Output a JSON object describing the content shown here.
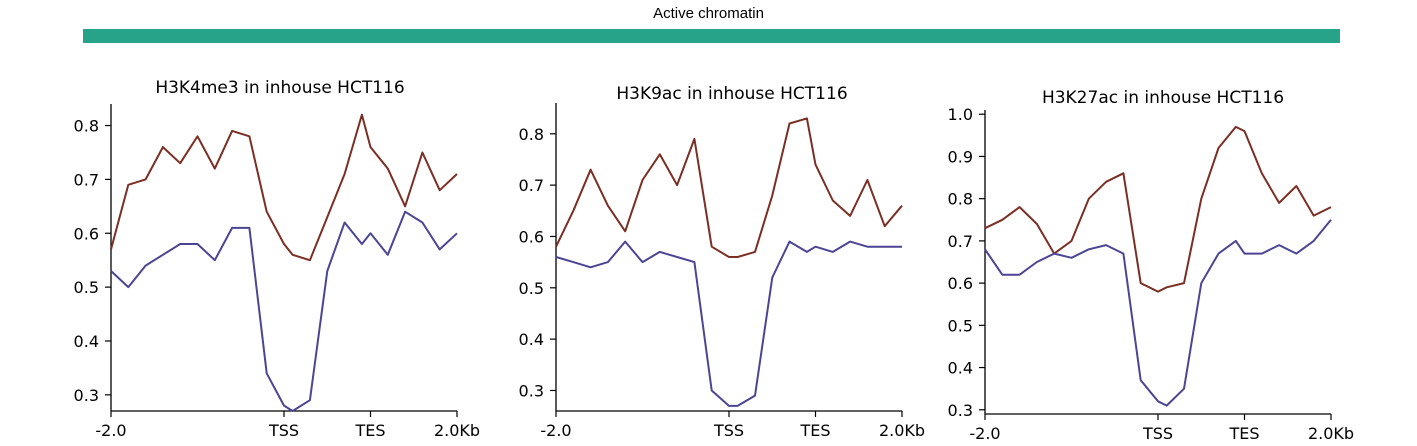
{
  "header": {
    "title": "Active chromatin",
    "bar_color": "#27a38a"
  },
  "colors": {
    "red_series": "#7b2f24",
    "blue_series": "#4b4594"
  },
  "chart_data": [
    {
      "type": "line",
      "title": "H3K4me3 in inhouse HCT116",
      "x": [
        -2.0,
        -1.8,
        -1.6,
        -1.4,
        -1.2,
        -1.0,
        -0.8,
        -0.6,
        -0.4,
        -0.2,
        0.0,
        0.1,
        0.3,
        0.5,
        0.7,
        0.9,
        1.0,
        1.2,
        1.4,
        1.6,
        1.8,
        2.0
      ],
      "xticks": [
        {
          "value": -2.0,
          "label": "-2.0"
        },
        {
          "value": 0.0,
          "label": "TSS"
        },
        {
          "value": 1.0,
          "label": "TES"
        },
        {
          "value": 2.0,
          "label": "2.0Kb"
        }
      ],
      "ylim": [
        0.27,
        0.84
      ],
      "yticks": [
        0.3,
        0.4,
        0.5,
        0.6,
        0.7,
        0.8
      ],
      "series": [
        {
          "values": [
            0.57,
            0.69,
            0.7,
            0.76,
            0.73,
            0.78,
            0.72,
            0.79,
            0.78,
            0.64,
            0.58,
            0.56,
            0.55,
            0.63,
            0.71,
            0.82,
            0.76,
            0.72,
            0.65,
            0.75,
            0.68,
            0.71
          ]
        },
        {
          "values": [
            0.53,
            0.5,
            0.54,
            0.56,
            0.58,
            0.58,
            0.55,
            0.61,
            0.61,
            0.34,
            0.28,
            0.27,
            0.29,
            0.53,
            0.62,
            0.58,
            0.6,
            0.56,
            0.64,
            0.62,
            0.57,
            0.6
          ]
        }
      ]
    },
    {
      "type": "line",
      "title": "H3K9ac in inhouse HCT116",
      "x": [
        -2.0,
        -1.8,
        -1.6,
        -1.4,
        -1.2,
        -1.0,
        -0.8,
        -0.6,
        -0.4,
        -0.2,
        0.0,
        0.1,
        0.3,
        0.5,
        0.7,
        0.9,
        1.0,
        1.2,
        1.4,
        1.6,
        1.8,
        2.0
      ],
      "xticks": [
        {
          "value": -2.0,
          "label": "-2.0"
        },
        {
          "value": 0.0,
          "label": "TSS"
        },
        {
          "value": 1.0,
          "label": "TES"
        },
        {
          "value": 2.0,
          "label": "2.0Kb"
        }
      ],
      "ylim": [
        0.26,
        0.86
      ],
      "yticks": [
        0.3,
        0.4,
        0.5,
        0.6,
        0.7,
        0.8
      ],
      "series": [
        {
          "values": [
            0.58,
            0.65,
            0.73,
            0.66,
            0.61,
            0.71,
            0.76,
            0.7,
            0.79,
            0.58,
            0.56,
            0.56,
            0.57,
            0.68,
            0.82,
            0.83,
            0.74,
            0.67,
            0.64,
            0.71,
            0.62,
            0.66
          ]
        },
        {
          "values": [
            0.56,
            0.55,
            0.54,
            0.55,
            0.59,
            0.55,
            0.57,
            0.56,
            0.55,
            0.3,
            0.27,
            0.27,
            0.29,
            0.52,
            0.59,
            0.57,
            0.58,
            0.57,
            0.59,
            0.58,
            0.58,
            0.58
          ]
        }
      ]
    },
    {
      "type": "line",
      "title": "H3K27ac in inhouse HCT116",
      "x": [
        -2.0,
        -1.8,
        -1.6,
        -1.4,
        -1.2,
        -1.0,
        -0.8,
        -0.6,
        -0.4,
        -0.2,
        0.0,
        0.1,
        0.3,
        0.5,
        0.7,
        0.9,
        1.0,
        1.2,
        1.4,
        1.6,
        1.8,
        2.0
      ],
      "xticks": [
        {
          "value": -2.0,
          "label": "-2.0"
        },
        {
          "value": 0.0,
          "label": "TSS"
        },
        {
          "value": 1.0,
          "label": "TES"
        },
        {
          "value": 2.0,
          "label": "2.0Kb"
        }
      ],
      "ylim": [
        0.29,
        1.01
      ],
      "yticks": [
        0.3,
        0.4,
        0.5,
        0.6,
        0.7,
        0.8,
        0.9,
        1.0
      ],
      "series": [
        {
          "values": [
            0.73,
            0.75,
            0.78,
            0.74,
            0.67,
            0.7,
            0.8,
            0.84,
            0.86,
            0.6,
            0.58,
            0.59,
            0.6,
            0.8,
            0.92,
            0.97,
            0.96,
            0.86,
            0.79,
            0.83,
            0.76,
            0.78
          ]
        },
        {
          "values": [
            0.68,
            0.62,
            0.62,
            0.65,
            0.67,
            0.66,
            0.68,
            0.69,
            0.67,
            0.37,
            0.32,
            0.31,
            0.35,
            0.6,
            0.67,
            0.7,
            0.67,
            0.67,
            0.69,
            0.67,
            0.7,
            0.75
          ]
        }
      ]
    }
  ]
}
